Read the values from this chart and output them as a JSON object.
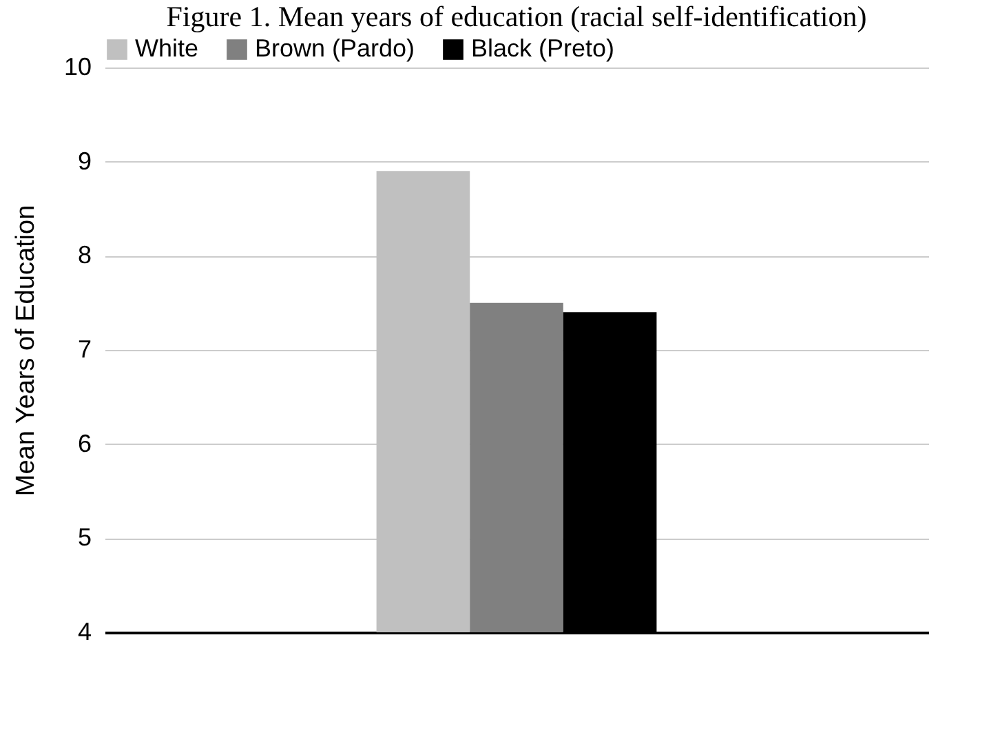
{
  "chart_data": {
    "type": "bar",
    "title": "Figure 1. Mean years of education (racial self-identification)",
    "ylabel": "Mean Years of Education",
    "categories": [
      null
    ],
    "series": [
      {
        "name": "White",
        "color": "#c0c0c0",
        "values": [
          8.9
        ]
      },
      {
        "name": "Brown (Pardo)",
        "color": "#808080",
        "values": [
          7.5
        ]
      },
      {
        "name": "Black (Preto)",
        "color": "#000000",
        "values": [
          7.4
        ]
      }
    ],
    "ylim": [
      4,
      10
    ],
    "yticks": [
      4,
      5,
      6,
      7,
      8,
      9,
      10
    ],
    "grid": "y",
    "legend": "top"
  }
}
